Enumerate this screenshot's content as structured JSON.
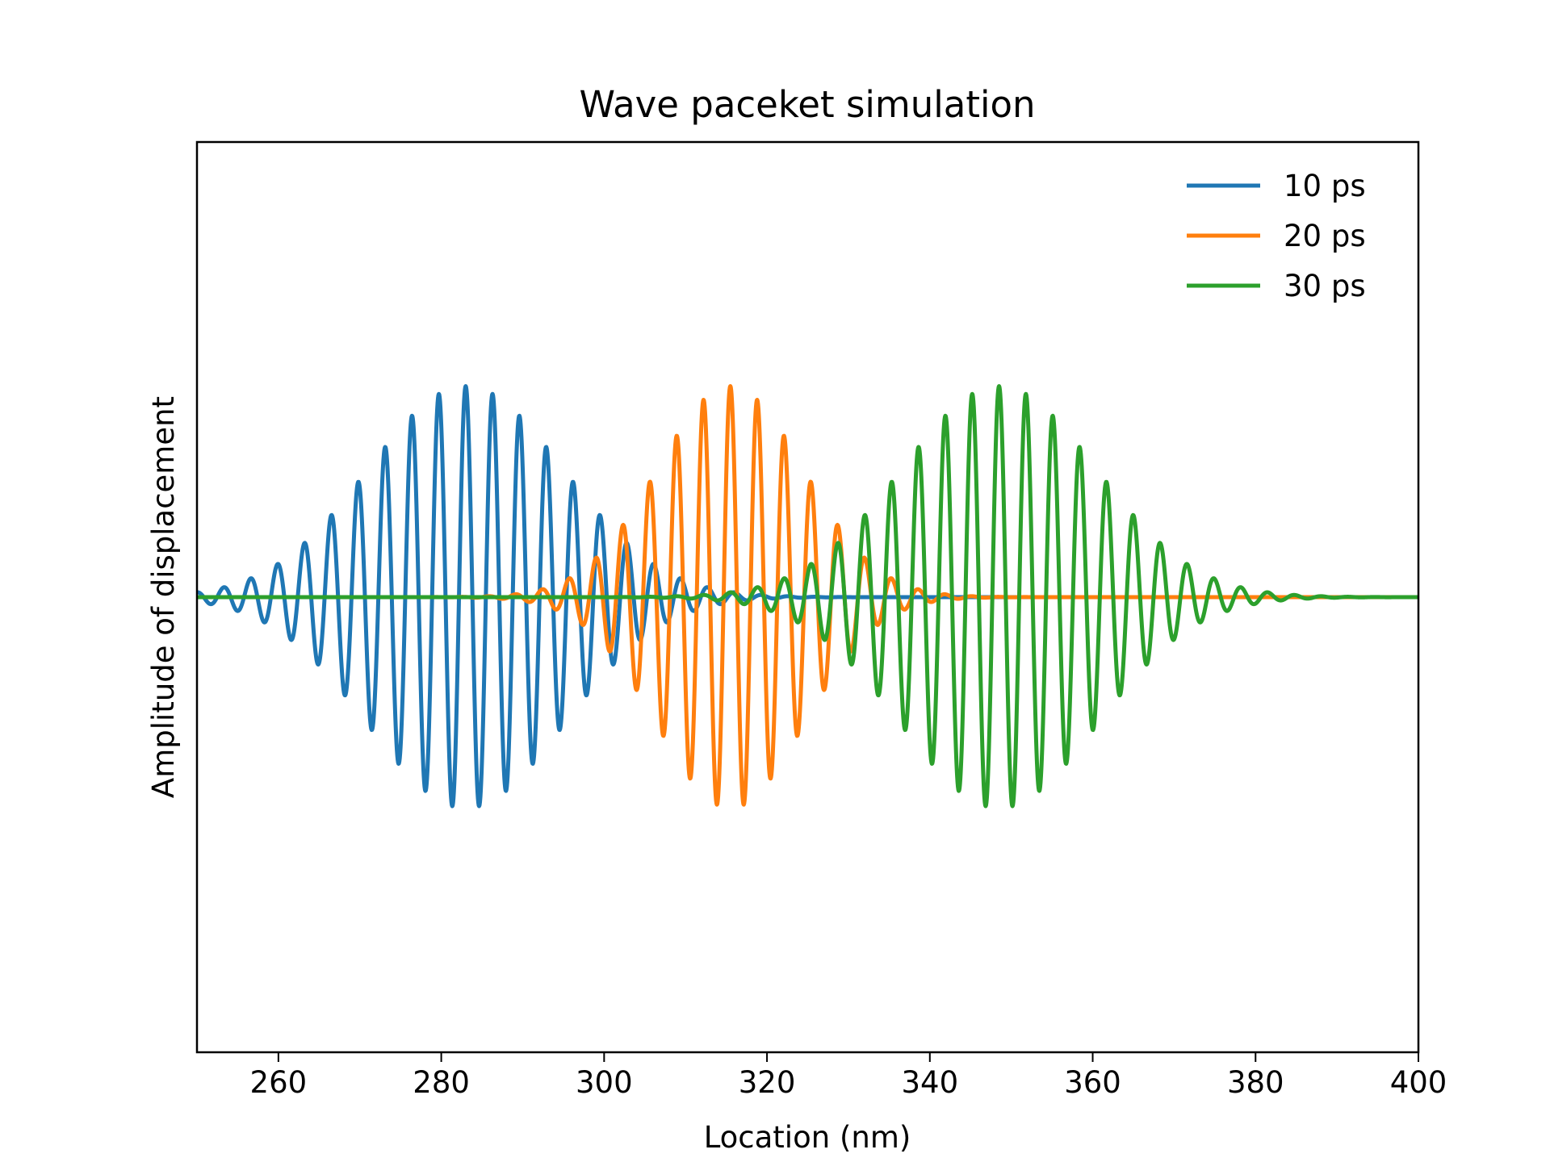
{
  "chart_data": {
    "type": "line",
    "title": "Wave paceket simulation",
    "xlabel": "Location (nm)",
    "ylabel": "Amplitude of displacement",
    "xlim": [
      250,
      400
    ],
    "ylim": [
      -1.1,
      1.1
    ],
    "xticks": [
      260,
      280,
      300,
      320,
      340,
      360,
      380,
      400
    ],
    "yticks": [],
    "grid": false,
    "legend_position": "top-right",
    "series": [
      {
        "name": "10 ps",
        "color": "#1f77b4",
        "center": 283,
        "sigma": 12,
        "wavelength": 3.3,
        "amplitude": 0.51,
        "x_range": [
          250,
          400
        ]
      },
      {
        "name": "20 ps",
        "color": "#ff7f0e",
        "center": 315.5,
        "sigma": 9,
        "wavelength": 3.3,
        "amplitude": 0.51,
        "x_range": [
          250,
          400
        ]
      },
      {
        "name": "30 ps",
        "color": "#2ca02c",
        "center": 348.5,
        "sigma": 12,
        "wavelength": 3.3,
        "amplitude": 0.51,
        "x_range": [
          250,
          400
        ]
      }
    ]
  }
}
